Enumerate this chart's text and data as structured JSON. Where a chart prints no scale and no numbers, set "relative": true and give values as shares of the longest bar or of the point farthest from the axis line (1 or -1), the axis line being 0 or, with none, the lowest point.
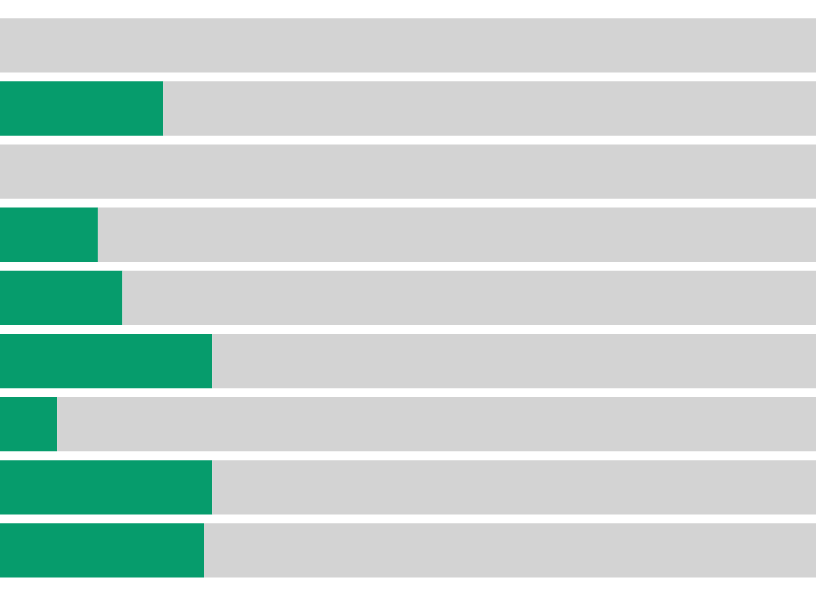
{
  "chart_data": {
    "type": "bar",
    "orientation": "horizontal",
    "stacked": true,
    "relative": true,
    "categories": [
      null,
      null,
      null,
      null,
      null,
      null,
      null,
      null,
      null
    ],
    "series": [
      {
        "color": "#069c6c",
        "values": [
          0,
          0.2,
          0,
          0.12,
          0.15,
          0.26,
          0.07,
          0.26,
          0.25
        ]
      },
      {
        "color": "#d3d3d3",
        "values": [
          1,
          0.8,
          1,
          0.88,
          0.85,
          0.74,
          0.93,
          0.74,
          0.75
        ]
      }
    ]
  }
}
